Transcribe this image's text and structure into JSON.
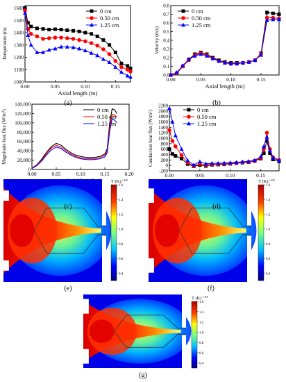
{
  "chart_data": [
    {
      "panel": "(a)",
      "type": "line",
      "xlabel": "Axial length (m)",
      "ylabel": "Temperature (m)",
      "xlim": [
        0,
        0.175
      ],
      "ylim": [
        1000,
        1620
      ],
      "x_ticks": [
        "0.00",
        "0.05",
        "0.10",
        "0.15"
      ],
      "y_ticks": [
        "1000",
        "1100",
        "1200",
        "1300",
        "1400",
        "1500",
        "1600"
      ],
      "legend": "top-right",
      "x": [
        0.0,
        0.005,
        0.01,
        0.02,
        0.03,
        0.04,
        0.05,
        0.06,
        0.07,
        0.08,
        0.09,
        0.1,
        0.11,
        0.12,
        0.13,
        0.14,
        0.15,
        0.16,
        0.17,
        0.175
      ],
      "series": [
        {
          "name": "0 cm",
          "color": "#000000",
          "marker": "square",
          "values": [
            1600,
            1480,
            1450,
            1435,
            1430,
            1425,
            1428,
            1425,
            1420,
            1415,
            1410,
            1400,
            1390,
            1370,
            1340,
            1300,
            1240,
            1150,
            1130,
            1110
          ]
        },
        {
          "name": "0.50 cm",
          "color": "#ff0000",
          "marker": "circle",
          "values": [
            1580,
            1430,
            1390,
            1370,
            1350,
            1355,
            1360,
            1360,
            1355,
            1350,
            1340,
            1330,
            1315,
            1295,
            1265,
            1225,
            1170,
            1120,
            1100,
            1085
          ]
        },
        {
          "name": "1.25 cm",
          "color": "#0000ff",
          "marker": "triangle",
          "values": [
            1560,
            1380,
            1300,
            1240,
            1240,
            1260,
            1270,
            1285,
            1285,
            1280,
            1270,
            1255,
            1235,
            1215,
            1185,
            1160,
            1120,
            1080,
            1050,
            1040
          ]
        }
      ]
    },
    {
      "panel": "(b)",
      "type": "line",
      "xlabel": "Axial length (m)",
      "ylabel": "Velocity (m/s)",
      "xlim": [
        0,
        0.18
      ],
      "ylim": [
        0,
        0.8
      ],
      "x_ticks": [
        "0.00",
        "0.05",
        "0.10",
        "0.15"
      ],
      "y_ticks": [
        "0.0",
        "0.1",
        "0.2",
        "0.3",
        "0.4",
        "0.5",
        "0.6",
        "0.7",
        "0.8"
      ],
      "legend": "top-left",
      "x": [
        0.0,
        0.01,
        0.02,
        0.03,
        0.04,
        0.05,
        0.06,
        0.07,
        0.08,
        0.09,
        0.1,
        0.11,
        0.12,
        0.13,
        0.14,
        0.15,
        0.16,
        0.17,
        0.18
      ],
      "series": [
        {
          "name": "0 cm",
          "color": "#000000",
          "marker": "square",
          "values": [
            0.0,
            0.02,
            0.1,
            0.18,
            0.24,
            0.26,
            0.24,
            0.2,
            0.17,
            0.15,
            0.14,
            0.14,
            0.14,
            0.15,
            0.17,
            0.25,
            0.72,
            0.71,
            0.7
          ]
        },
        {
          "name": "0.50 cm",
          "color": "#ff0000",
          "marker": "circle",
          "values": [
            0.0,
            0.02,
            0.1,
            0.17,
            0.23,
            0.25,
            0.23,
            0.19,
            0.16,
            0.14,
            0.13,
            0.13,
            0.14,
            0.15,
            0.17,
            0.24,
            0.66,
            0.66,
            0.65
          ]
        },
        {
          "name": "1.25 cm",
          "color": "#0000ff",
          "marker": "triangle",
          "values": [
            0.0,
            0.03,
            0.11,
            0.18,
            0.22,
            0.24,
            0.22,
            0.19,
            0.16,
            0.14,
            0.13,
            0.13,
            0.14,
            0.15,
            0.17,
            0.23,
            0.63,
            0.64,
            0.64
          ]
        }
      ]
    },
    {
      "panel": "(c)",
      "type": "line",
      "xlabel": "Axial length",
      "ylabel": "Magnitude heat flux (W/m²)",
      "xlim": [
        0,
        0.2
      ],
      "ylim": [
        0,
        140000
      ],
      "x_ticks": [
        "0.00",
        "0.05",
        "0.10",
        "0.15",
        "0.20"
      ],
      "y_ticks": [
        "0",
        "20,000",
        "40,000",
        "60,000",
        "80,000",
        "100,000",
        "120,000",
        "140,000"
      ],
      "legend": "top-right",
      "x": [
        0.0,
        0.01,
        0.02,
        0.03,
        0.04,
        0.05,
        0.06,
        0.07,
        0.08,
        0.09,
        0.1,
        0.11,
        0.12,
        0.13,
        0.14,
        0.15,
        0.155,
        0.16,
        0.165,
        0.17,
        0.175
      ],
      "series": [
        {
          "name": "0 cm",
          "color": "#000000",
          "marker": "none",
          "values": [
            3000,
            10000,
            22000,
            37000,
            49000,
            56000,
            52000,
            43000,
            36000,
            31000,
            28000,
            26000,
            25500,
            26000,
            28000,
            33000,
            45000,
            100000,
            130000,
            128000,
            120000
          ]
        },
        {
          "name": "0.50 cm",
          "color": "#ff0000",
          "marker": "none",
          "values": [
            3000,
            9000,
            20000,
            34000,
            46000,
            52000,
            48000,
            40000,
            33000,
            28000,
            25000,
            23500,
            23000,
            23500,
            25500,
            30000,
            40000,
            90000,
            118000,
            117000,
            112000
          ]
        },
        {
          "name": "1.25 cm",
          "color": "#0000ff",
          "marker": "none",
          "values": [
            2000,
            8000,
            18000,
            31000,
            42000,
            48000,
            45000,
            37000,
            31000,
            26000,
            23000,
            21500,
            21000,
            21500,
            23000,
            27000,
            36000,
            82000,
            108000,
            106000,
            100000
          ]
        }
      ]
    },
    {
      "panel": "(d)",
      "type": "line",
      "xlabel": "Axial length (m)",
      "ylabel": "Conduction heat flux (W/m²)",
      "xlim": [
        0,
        0.18
      ],
      "ylim": [
        -200,
        2200
      ],
      "x_ticks": [
        "0.00",
        "0.05",
        "0.10",
        "0.15"
      ],
      "y_ticks": [
        "-200",
        "0",
        "200",
        "400",
        "600",
        "800",
        "1000",
        "1200",
        "1400",
        "1600",
        "1800",
        "2000",
        "2200"
      ],
      "legend": "top-right",
      "x": [
        0.0,
        0.005,
        0.01,
        0.02,
        0.03,
        0.04,
        0.05,
        0.06,
        0.07,
        0.08,
        0.09,
        0.1,
        0.11,
        0.12,
        0.13,
        0.14,
        0.15,
        0.155,
        0.16,
        0.165,
        0.17,
        0.18
      ],
      "series": [
        {
          "name": "0 cm",
          "color": "#000000",
          "marker": "square",
          "values": [
            600,
            420,
            350,
            250,
            50,
            -30,
            10,
            -20,
            20,
            30,
            40,
            60,
            80,
            100,
            120,
            160,
            250,
            450,
            900,
            450,
            220,
            150
          ]
        },
        {
          "name": "0.50 cm",
          "color": "#ff0000",
          "marker": "circle",
          "values": [
            1300,
            900,
            700,
            380,
            100,
            -20,
            60,
            20,
            40,
            50,
            60,
            70,
            90,
            110,
            130,
            170,
            280,
            600,
            1200,
            600,
            300,
            200
          ]
        },
        {
          "name": "1.25 cm",
          "color": "#0000ff",
          "marker": "triangle",
          "values": [
            2100,
            1600,
            1100,
            600,
            180,
            20,
            140,
            60,
            80,
            80,
            90,
            100,
            110,
            130,
            150,
            190,
            320,
            700,
            1050,
            550,
            280,
            180
          ]
        }
      ]
    },
    {
      "panel": "(e)",
      "type": "heatmap",
      "colorbar_label": "T (K)",
      "colorbar_scale": "×10³",
      "colorbar_ticks": [
        "0.4",
        "0.6",
        "0.8",
        "1.0",
        "1.2",
        "1.4",
        "1.6"
      ],
      "range": [
        0.3,
        1.6
      ],
      "inlet_gap": "small"
    },
    {
      "panel": "(f)",
      "type": "heatmap",
      "colorbar_label": "T (K)",
      "colorbar_scale": "×10³",
      "colorbar_ticks": [
        "0.4",
        "0.6",
        "0.8",
        "1.0",
        "1.2",
        "1.4",
        "1.6"
      ],
      "range": [
        0.3,
        1.6
      ],
      "inlet_gap": "medium"
    },
    {
      "panel": "(g)",
      "type": "heatmap",
      "colorbar_label": "T (K)",
      "colorbar_scale": "×10³",
      "colorbar_ticks": [
        "0.4",
        "0.6",
        "0.8",
        "1.0",
        "1.2",
        "1.4",
        "1.6"
      ],
      "range": [
        0.3,
        1.6
      ],
      "inlet_gap": "large"
    }
  ]
}
